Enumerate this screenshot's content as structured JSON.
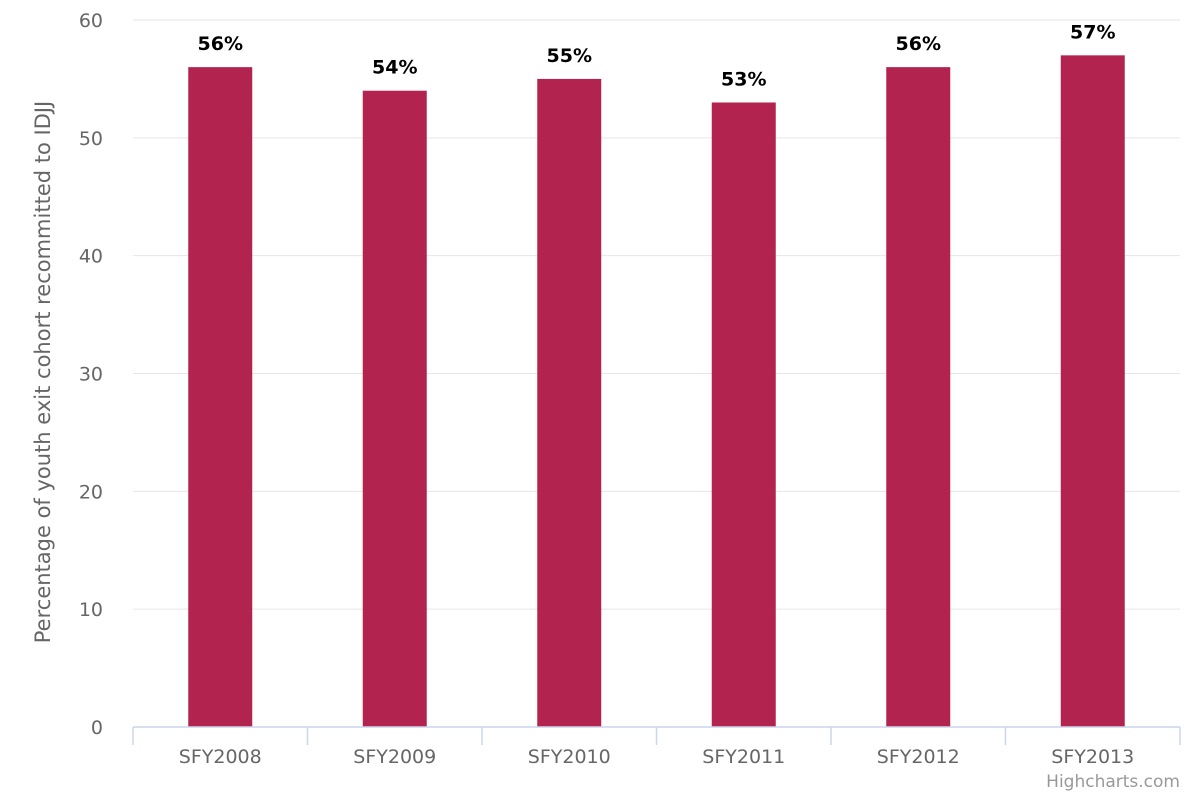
{
  "chart_data": {
    "type": "bar",
    "title": "",
    "xlabel": "",
    "ylabel": "Percentage of youth exit cohort recommitted to IDJJ",
    "categories": [
      "SFY2008",
      "SFY2009",
      "SFY2010",
      "SFY2011",
      "SFY2012",
      "SFY2013"
    ],
    "values": [
      56,
      54,
      55,
      53,
      56,
      57
    ],
    "data_labels": [
      "56%",
      "54%",
      "55%",
      "53%",
      "56%",
      "57%"
    ],
    "ylim": [
      0,
      60
    ],
    "yticks": [
      0,
      10,
      20,
      30,
      40,
      50,
      60
    ],
    "grid": true,
    "legend": "none",
    "bar_color": "#b22350"
  },
  "credits": "Highcharts.com"
}
